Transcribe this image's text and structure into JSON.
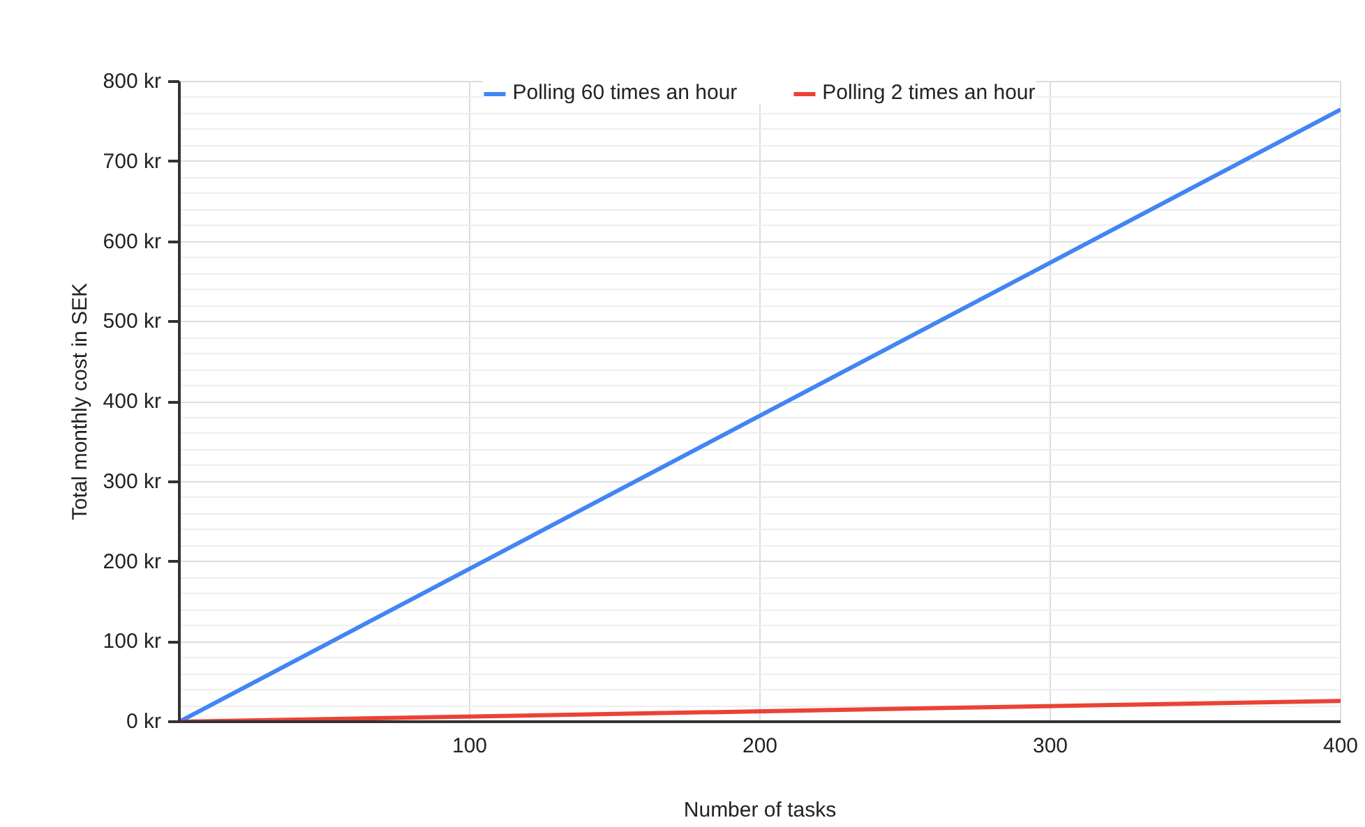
{
  "chart_data": {
    "type": "line",
    "xlabel": "Number of tasks",
    "ylabel": "Total monthly cost in SEK",
    "x": [
      0,
      400
    ],
    "series": [
      {
        "name": "Polling 60 times an hour",
        "color": "#4285f4",
        "values": [
          0,
          765
        ]
      },
      {
        "name": "Polling 2 times an hour",
        "color": "#ea4335",
        "values": [
          0,
          26
        ]
      }
    ],
    "xlim": [
      0,
      400
    ],
    "xticks": [
      100,
      200,
      300,
      400
    ],
    "ylim": [
      0,
      800
    ],
    "yticks": [
      {
        "value": 0,
        "label": "0 kr"
      },
      {
        "value": 100,
        "label": "100 kr"
      },
      {
        "value": 200,
        "label": "200 kr"
      },
      {
        "value": 300,
        "label": "300 kr"
      },
      {
        "value": 400,
        "label": "400 kr"
      },
      {
        "value": 500,
        "label": "500 kr"
      },
      {
        "value": 600,
        "label": "600 kr"
      },
      {
        "value": 700,
        "label": "700 kr"
      },
      {
        "value": 800,
        "label": "800 kr"
      }
    ],
    "grid": true,
    "legend": "top",
    "marker": "none",
    "line_style": "solid"
  }
}
